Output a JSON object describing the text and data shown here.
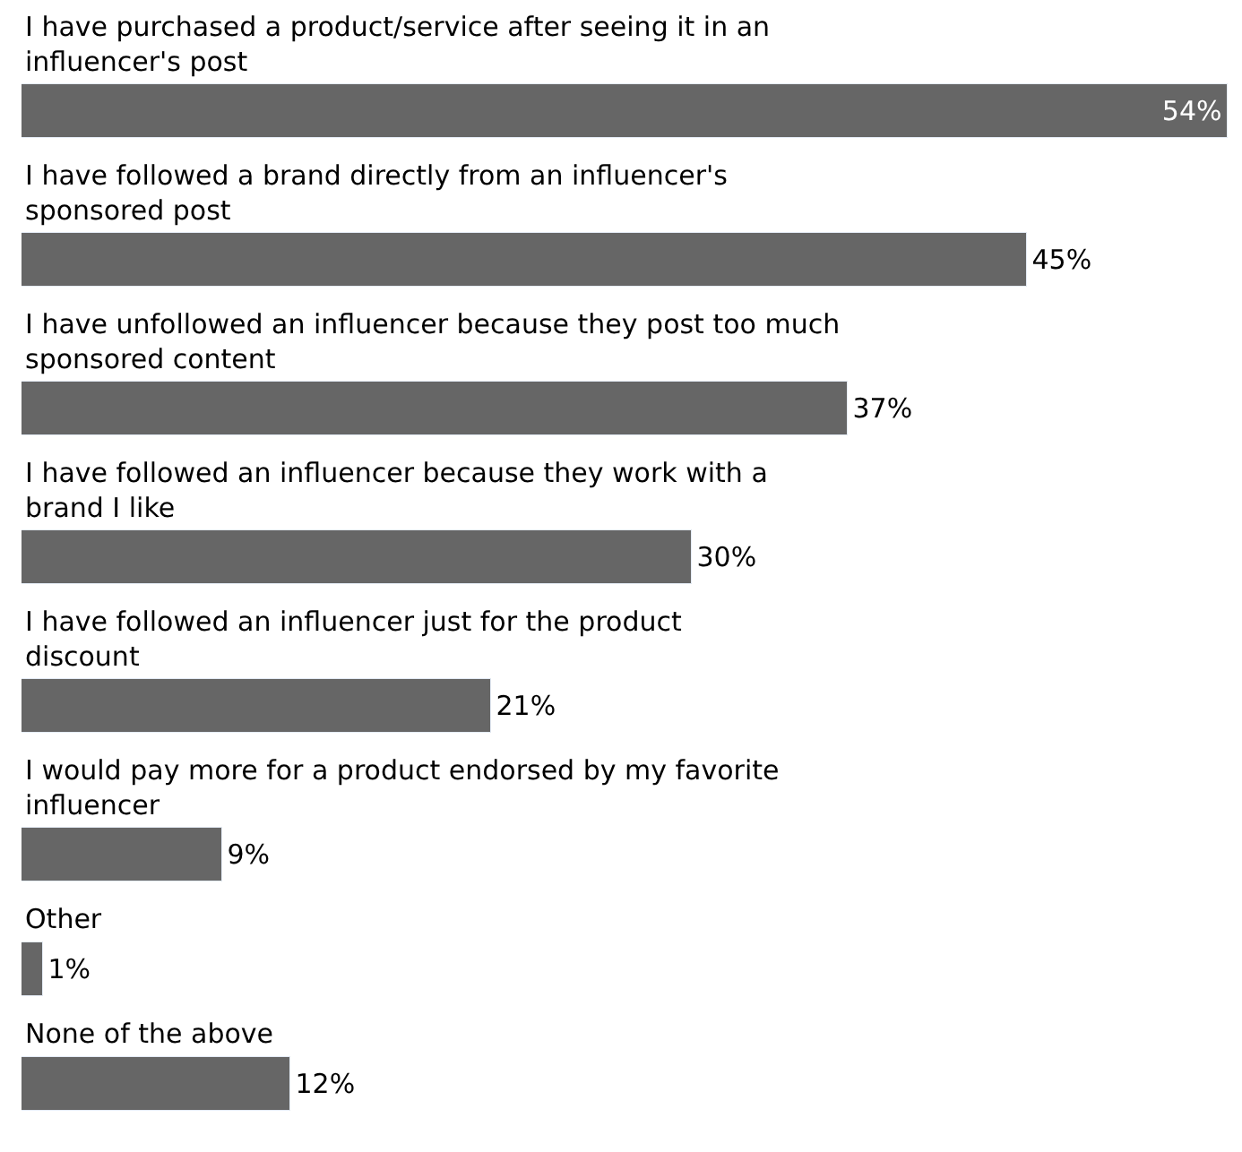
{
  "chart_data": {
    "type": "bar",
    "orientation": "horizontal",
    "color": "#666666",
    "categories": [
      "I have purchased a product/service after seeing it in an influencer's post",
      "I have followed a brand directly from an influencer's sponsored post",
      "I have unfollowed an influencer because they post too much sponsored content",
      "I have followed an influencer because they work with a brand I like",
      "I have followed an influencer just for the product discount",
      "I would pay more for a product endorsed by my favorite influencer",
      "Other",
      "None of the above"
    ],
    "values": [
      54,
      45,
      37,
      30,
      21,
      9,
      1,
      12
    ],
    "value_labels": [
      "54%",
      "45%",
      "37%",
      "30%",
      "21%",
      "9%",
      "1%",
      "12%"
    ]
  }
}
